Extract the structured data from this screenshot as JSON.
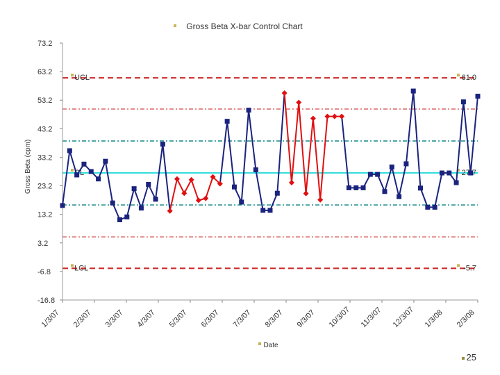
{
  "chart_data": {
    "type": "line",
    "title": "Gross Beta X-bar Control Chart",
    "xlabel": "Date",
    "ylabel": "Gross Beta (cpm)",
    "ylim": [
      -16.8,
      73.2
    ],
    "yticks": [
      73.2,
      63.2,
      53.2,
      43.2,
      33.2,
      23.2,
      13.2,
      3.2,
      -6.8,
      -16.8
    ],
    "xtick_labels": [
      "1/3/07",
      "2/3/07",
      "3/3/07",
      "4/3/07",
      "5/3/07",
      "6/3/07",
      "7/3/07",
      "8/3/07",
      "9/3/07",
      "10/3/07",
      "11/3/07",
      "12/3/07",
      "1/3/08",
      "2/3/08"
    ],
    "control_lines": {
      "ucl": {
        "label": "UCL",
        "value": 61.0,
        "value_label": "61.0",
        "color": "#cc2222"
      },
      "cl": {
        "label": "CL",
        "value": 27.7,
        "value_label": "27.7",
        "color": "#33dddd"
      },
      "lcl": {
        "label": "LCL",
        "value": -5.7,
        "value_label": "-5.7",
        "color": "#cc2222"
      },
      "upper_2sigma": {
        "value": 50.1,
        "color": "#dd6666"
      },
      "upper_1sigma": {
        "value": 38.9,
        "color": "#118888"
      },
      "lower_1sigma": {
        "value": 16.5,
        "color": "#118888"
      },
      "lower_2sigma": {
        "value": 5.3,
        "color": "#dd6666"
      }
    },
    "series": [
      {
        "color": "#1a237e",
        "highlight_color": "#e01010",
        "values": [
          16.3,
          35.5,
          27.0,
          30.8,
          28.2,
          25.6,
          31.8,
          17.2,
          11.3,
          12.3,
          22.2,
          15.4,
          23.7,
          18.5,
          37.8,
          14.4,
          25.6,
          20.6,
          25.3,
          18.1,
          18.8,
          26.3,
          23.9,
          45.8,
          22.8,
          17.5,
          49.7,
          28.8,
          14.6,
          14.6,
          20.6,
          55.7,
          24.3,
          52.4,
          20.5,
          46.8,
          18.3,
          47.5,
          47.5,
          47.5,
          22.5,
          22.5,
          22.5,
          27.2,
          27.2,
          21.2,
          29.8,
          19.4,
          30.9,
          56.4,
          22.4,
          15.7,
          15.7,
          27.7,
          27.7,
          24.3,
          52.6,
          27.7,
          54.6
        ],
        "highlighted_ranges": [
          [
            15,
            22
          ],
          [
            31,
            39
          ]
        ]
      }
    ]
  },
  "slide": {
    "page_number": "25"
  }
}
